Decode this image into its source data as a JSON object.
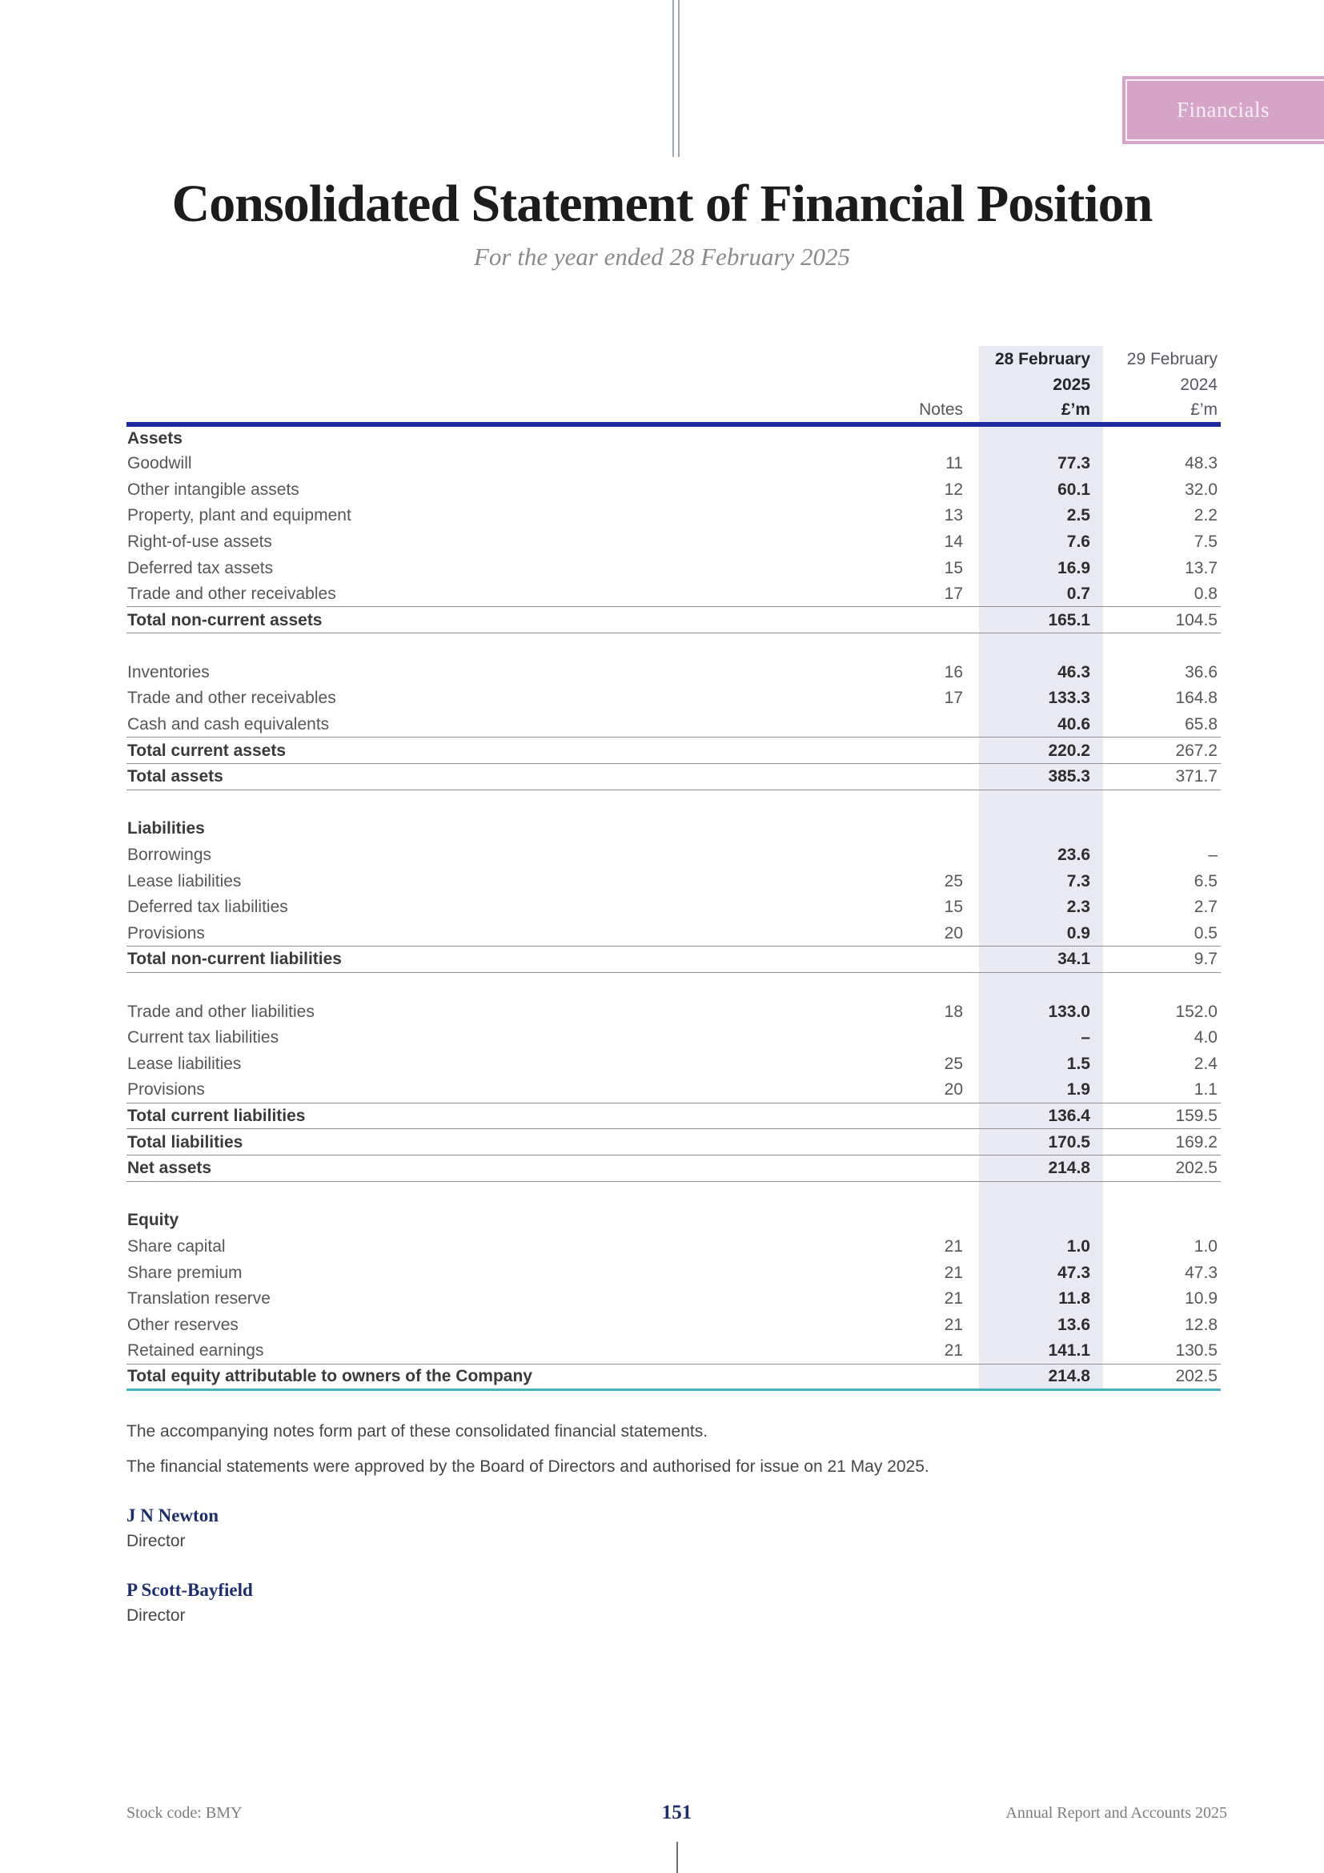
{
  "page": {
    "badge": "Financials",
    "title": "Consolidated Statement of Financial Position",
    "subtitle": "For the year ended 28 February 2025"
  },
  "table": {
    "header": {
      "notes_label": "Notes",
      "col_2025": {
        "line1": "28 February",
        "line2": "2025",
        "line3": "£’m"
      },
      "col_2024": {
        "line1": "29 February",
        "line2": "2024",
        "line3": "£’m"
      }
    },
    "rows": [
      {
        "type": "section",
        "label": "Assets"
      },
      {
        "type": "item",
        "label": "Goodwill",
        "note": "11",
        "v2025": "77.3",
        "v2024": "48.3"
      },
      {
        "type": "item",
        "label": "Other intangible assets",
        "note": "12",
        "v2025": "60.1",
        "v2024": "32.0"
      },
      {
        "type": "item",
        "label": "Property, plant and equipment",
        "note": "13",
        "v2025": "2.5",
        "v2024": "2.2"
      },
      {
        "type": "item",
        "label": "Right-of-use assets",
        "note": "14",
        "v2025": "7.6",
        "v2024": "7.5"
      },
      {
        "type": "item",
        "label": "Deferred tax assets",
        "note": "15",
        "v2025": "16.9",
        "v2024": "13.7"
      },
      {
        "type": "item",
        "label": "Trade and other receivables",
        "note": "17",
        "v2025": "0.7",
        "v2024": "0.8"
      },
      {
        "type": "total",
        "label": "Total non-current assets",
        "v2025": "165.1",
        "v2024": "104.5"
      },
      {
        "type": "gap"
      },
      {
        "type": "item",
        "label": "Inventories",
        "note": "16",
        "v2025": "46.3",
        "v2024": "36.6"
      },
      {
        "type": "item",
        "label": "Trade and other receivables",
        "note": "17",
        "v2025": "133.3",
        "v2024": "164.8"
      },
      {
        "type": "item",
        "label": "Cash and cash equivalents",
        "v2025": "40.6",
        "v2024": "65.8"
      },
      {
        "type": "total",
        "label": "Total current assets",
        "v2025": "220.2",
        "v2024": "267.2"
      },
      {
        "type": "total",
        "label": "Total assets",
        "v2025": "385.3",
        "v2024": "371.7"
      },
      {
        "type": "gap"
      },
      {
        "type": "section",
        "label": "Liabilities"
      },
      {
        "type": "item",
        "label": "Borrowings",
        "v2025": "23.6",
        "v2024": "–"
      },
      {
        "type": "item",
        "label": "Lease liabilities",
        "note": "25",
        "v2025": "7.3",
        "v2024": "6.5"
      },
      {
        "type": "item",
        "label": "Deferred tax liabilities",
        "note": "15",
        "v2025": "2.3",
        "v2024": "2.7"
      },
      {
        "type": "item",
        "label": "Provisions",
        "note": "20",
        "v2025": "0.9",
        "v2024": "0.5"
      },
      {
        "type": "total",
        "label": "Total non-current liabilities",
        "v2025": "34.1",
        "v2024": "9.7"
      },
      {
        "type": "gap"
      },
      {
        "type": "item",
        "label": "Trade and other liabilities",
        "note": "18",
        "v2025": "133.0",
        "v2024": "152.0"
      },
      {
        "type": "item",
        "label": "Current tax liabilities",
        "v2025": "–",
        "v2024": "4.0"
      },
      {
        "type": "item",
        "label": "Lease liabilities",
        "note": "25",
        "v2025": "1.5",
        "v2024": "2.4"
      },
      {
        "type": "item",
        "label": "Provisions",
        "note": "20",
        "v2025": "1.9",
        "v2024": "1.1"
      },
      {
        "type": "total",
        "label": "Total current liabilities",
        "v2025": "136.4",
        "v2024": "159.5"
      },
      {
        "type": "total",
        "label": "Total liabilities",
        "v2025": "170.5",
        "v2024": "169.2"
      },
      {
        "type": "total",
        "label": "Net assets",
        "v2025": "214.8",
        "v2024": "202.5"
      },
      {
        "type": "gap"
      },
      {
        "type": "section",
        "label": "Equity"
      },
      {
        "type": "item",
        "label": "Share capital",
        "note": "21",
        "v2025": "1.0",
        "v2024": "1.0"
      },
      {
        "type": "item",
        "label": "Share premium",
        "note": "21",
        "v2025": "47.3",
        "v2024": "47.3"
      },
      {
        "type": "item",
        "label": "Translation reserve",
        "note": "21",
        "v2025": "11.8",
        "v2024": "10.9"
      },
      {
        "type": "item",
        "label": "Other reserves",
        "note": "21",
        "v2025": "13.6",
        "v2024": "12.8"
      },
      {
        "type": "item",
        "label": "Retained earnings",
        "note": "21",
        "v2025": "141.1",
        "v2024": "130.5"
      },
      {
        "type": "grand",
        "label": "Total equity attributable to owners of the Company",
        "v2025": "214.8",
        "v2024": "202.5"
      }
    ]
  },
  "notes": {
    "line1": "The accompanying notes form part of these consolidated financial statements.",
    "line2": "The financial statements were approved by the Board of Directors and authorised for issue on 21 May 2025."
  },
  "signatories": [
    {
      "name": "J N Newton",
      "role": "Director"
    },
    {
      "name": "P Scott-Bayfield",
      "role": "Director"
    }
  ],
  "footer": {
    "stock_code": "Stock code: BMY",
    "page_number": "151",
    "report_title": "Annual Report and Accounts 2025"
  },
  "colors": {
    "header_rule_navy": "#1b2a9e",
    "accent_navy": "#1d2d6f",
    "teal_rule": "#43b4bc",
    "column_lavender": "#e9e9f4",
    "badge_pink": "#d5a4c9",
    "top_rule_grey": "#9aa6b0"
  }
}
